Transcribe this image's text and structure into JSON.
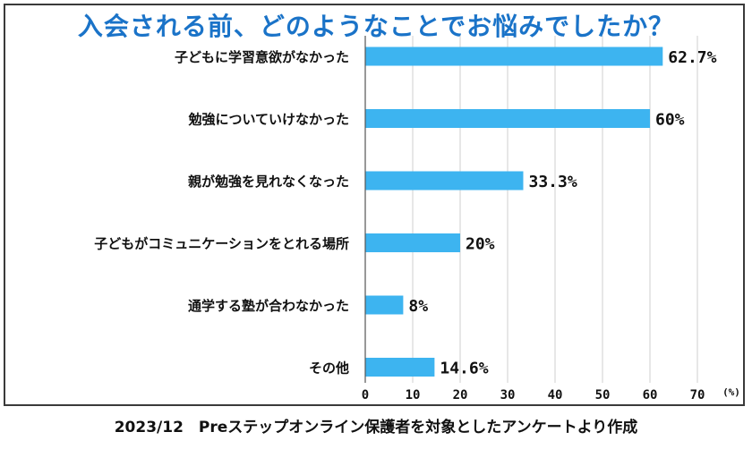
{
  "title": "入会される前、どのようなことでお悩みでしたか？",
  "footer": "2023/12　Preステップオンライン保護者を対象としたアンケートより作成",
  "colors": {
    "bar": "#3db4f0",
    "title": "#1a73c8",
    "grid": "#cfcfcf",
    "text": "#111111"
  },
  "chart_data": {
    "type": "bar",
    "orientation": "horizontal",
    "title": "入会される前、どのようなことでお悩みでしたか？",
    "categories": [
      "子どもに学習意欲がなかった",
      "勉強についていけなかった",
      "親が勉強を見れなくなった",
      "子どもがコミュニケーションをとれる場所",
      "通学する塾が合わなかった",
      "その他"
    ],
    "values": [
      62.7,
      60,
      33.3,
      20,
      8,
      14.6
    ],
    "value_labels": [
      "62.7%",
      "60%",
      "33.3%",
      "20%",
      "8%",
      "14.6%"
    ],
    "xlim": [
      0,
      70
    ],
    "xticks": [
      0,
      10,
      20,
      30,
      40,
      50,
      60,
      70
    ],
    "xunit": "(%)",
    "grid": true
  }
}
